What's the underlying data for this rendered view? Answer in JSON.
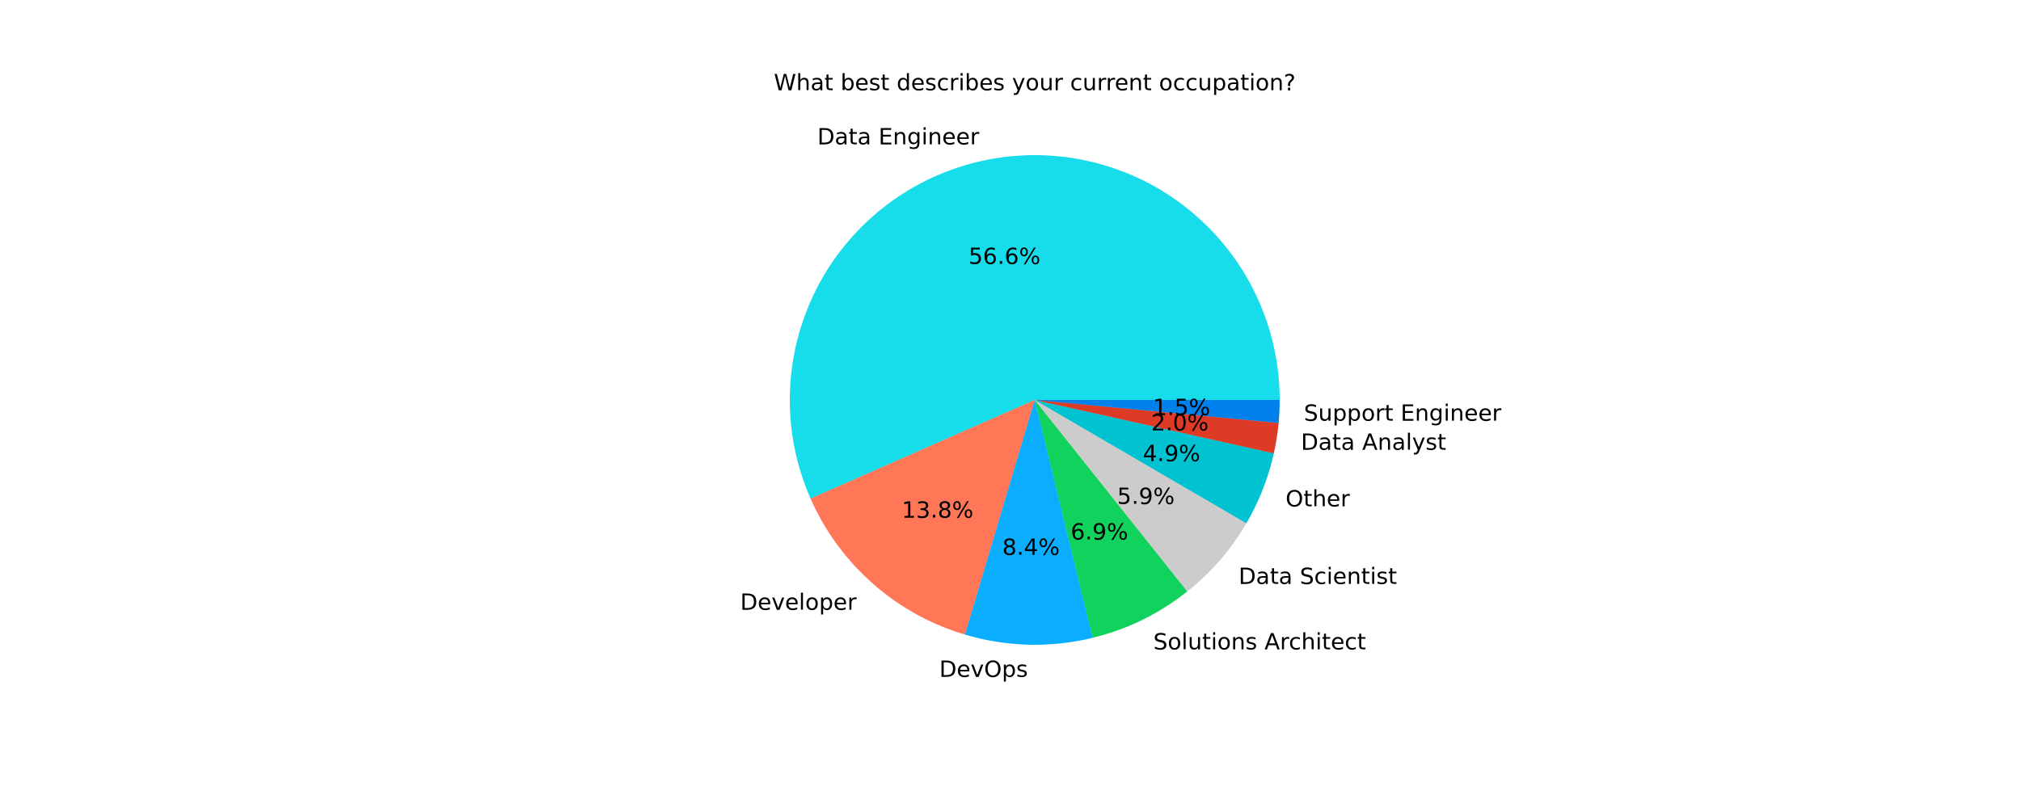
{
  "chart_data": {
    "type": "pie",
    "title": "What best describes your current occupation?",
    "direction": "counterclockwise",
    "start_angle_deg": 0,
    "label_distance": 1.1,
    "pct_distance": 0.6,
    "text_color": "#000000",
    "background_color": "#FFFFFF",
    "slices": [
      {
        "label": "Data Engineer",
        "value": 56.6,
        "pct_label": "56.6%",
        "color": "#17DDEA"
      },
      {
        "label": "Developer",
        "value": 13.8,
        "pct_label": "13.8%",
        "color": "#FF7757"
      },
      {
        "label": "DevOps",
        "value": 8.4,
        "pct_label": "8.4%",
        "color": "#0BAEFF"
      },
      {
        "label": "Solutions Architect",
        "value": 6.9,
        "pct_label": "6.9%",
        "color": "#10D25C"
      },
      {
        "label": "Data Scientist",
        "value": 5.9,
        "pct_label": "5.9%",
        "color": "#CCCCCC"
      },
      {
        "label": "Other",
        "value": 4.9,
        "pct_label": "4.9%",
        "color": "#00C2D1"
      },
      {
        "label": "Data Analyst",
        "value": 2.0,
        "pct_label": "2.0%",
        "color": "#DE3B26"
      },
      {
        "label": "Support Engineer",
        "value": 1.5,
        "pct_label": "1.5%",
        "color": "#0080EA"
      }
    ]
  }
}
